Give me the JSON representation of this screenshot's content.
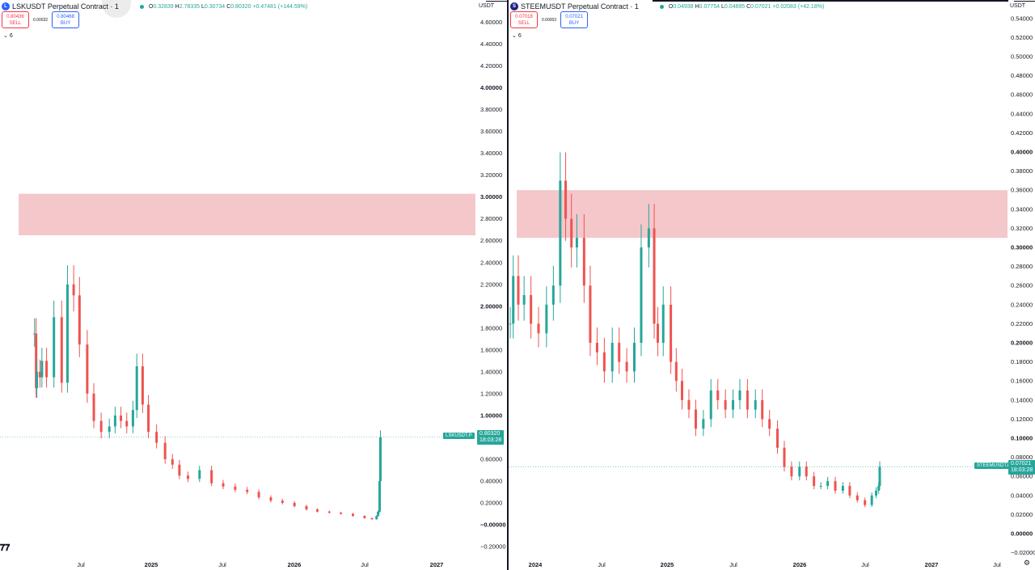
{
  "chart_data": [
    {
      "type": "candlestick",
      "symbol_title": "LSKUSDT Perpetual Contract · 1",
      "logo_letter": "L",
      "ohlc": {
        "o_label": "O",
        "o": "0.32839",
        "h_label": "H",
        "h": "2.78335",
        "l_label": "L",
        "l": "0.30734",
        "c_label": "C",
        "c": "0.80320",
        "change": "+0.47481 (+144.59%)"
      },
      "sell": {
        "price": "0.80436",
        "label": "SELL"
      },
      "buy": {
        "price": "0.80468",
        "label": "BUY"
      },
      "spread": "0.00032",
      "indicators_label": "6",
      "currency": "USDT",
      "ylim": [
        -0.2,
        4.7
      ],
      "y_ticks": [
        "4.60000",
        "4.40000",
        "4.20000",
        "4.00000",
        "3.80000",
        "3.60000",
        "3.40000",
        "3.20000",
        "3.00000",
        "2.80000",
        "2.60000",
        "2.40000",
        "2.20000",
        "2.00000",
        "1.80000",
        "1.60000",
        "1.40000",
        "1.20000",
        "1.00000",
        "0.80000",
        "0.60000",
        "0.40000",
        "0.20000",
        "−0.00000",
        "−0.20000"
      ],
      "x_ticks": [
        "Jul",
        "2025",
        "Jul",
        "2026",
        "Jul",
        "2027"
      ],
      "resistance_zone": [
        2.65,
        3.03
      ],
      "last_price": "0.80320",
      "last_price_value": 0.8032,
      "countdown": "18:03:28",
      "symbol_tag": "LSKUSDT.P",
      "colors": {
        "up": "#26a69a",
        "down": "#ef5350",
        "zone": "#f4c7cb"
      },
      "x": [
        "2024-03-01",
        "2024-03-05",
        "2024-03-07",
        "2024-03-15",
        "2024-03-20",
        "2024-04-01",
        "2024-04-20",
        "2024-05-10",
        "2024-05-25",
        "2024-06-10",
        "2024-06-25",
        "2024-07-15",
        "2024-08-01",
        "2024-08-20",
        "2024-09-10",
        "2024-09-25",
        "2024-10-10",
        "2024-10-25",
        "2024-11-10",
        "2024-11-20",
        "2024-12-05",
        "2024-12-20",
        "2025-01-10",
        "2025-02-01",
        "2025-02-20",
        "2025-03-10",
        "2025-04-01",
        "2025-05-01",
        "2025-06-01",
        "2025-07-01",
        "2025-08-01",
        "2025-09-01",
        "2025-10-01",
        "2025-11-01",
        "2025-12-01",
        "2026-01-01",
        "2026-02-01",
        "2026-03-01",
        "2026-04-01",
        "2026-05-01",
        "2026-06-01",
        "2026-07-01",
        "2026-07-20",
        "2026-08-01",
        "2026-08-05",
        "2026-08-09",
        "2026-08-11"
      ],
      "values": [
        1.75,
        1.25,
        1.4,
        1.35,
        1.5,
        1.35,
        1.9,
        1.3,
        2.2,
        2.1,
        1.65,
        1.2,
        0.95,
        0.85,
        0.9,
        1.0,
        0.95,
        0.9,
        1.05,
        1.45,
        1.1,
        0.85,
        0.75,
        0.6,
        0.55,
        0.45,
        0.42,
        0.5,
        0.38,
        0.35,
        0.32,
        0.3,
        0.25,
        0.22,
        0.2,
        0.17,
        0.14,
        0.12,
        0.11,
        0.1,
        0.08,
        0.06,
        0.05,
        0.08,
        0.12,
        0.4,
        0.8
      ]
    },
    {
      "type": "candlestick",
      "symbol_title": "STEEMUSDT Perpetual Contract · 1",
      "logo_letter": "S",
      "ohlc": {
        "o_label": "O",
        "o": "0.04938",
        "h_label": "H",
        "h": "0.07754",
        "l_label": "L",
        "l": "0.04895",
        "c_label": "C",
        "c": "0.07021",
        "change": "+0.02083 (+42.18%)"
      },
      "sell": {
        "price": "0.07018",
        "label": "SELL"
      },
      "buy": {
        "price": "0.07021",
        "label": "BUY"
      },
      "spread": "0.00003",
      "indicators_label": "6",
      "currency": "USDT",
      "ylim": [
        -0.02,
        0.55
      ],
      "y_ticks": [
        "0.54000",
        "0.52000",
        "0.50000",
        "0.48000",
        "0.46000",
        "0.44000",
        "0.42000",
        "0.40000",
        "0.38000",
        "0.36000",
        "0.34000",
        "0.32000",
        "0.30000",
        "0.28000",
        "0.26000",
        "0.24000",
        "0.22000",
        "0.20000",
        "0.18000",
        "0.16000",
        "0.14000",
        "0.12000",
        "0.10000",
        "0.08000",
        "0.06000",
        "0.04000",
        "0.02000",
        "0.00000",
        "−0.02000"
      ],
      "x_ticks": [
        "2024",
        "Jul",
        "2025",
        "Jul",
        "2026",
        "Jul",
        "2027",
        "Jul"
      ],
      "resistance_zone": [
        0.31,
        0.36
      ],
      "last_price": "0.07021",
      "last_price_value": 0.0702,
      "countdown": "18:03:28",
      "symbol_tag": "STEEMUSDT.P",
      "colors": {
        "up": "#26a69a",
        "down": "#ef5350",
        "zone": "#f4c7cb"
      },
      "x": [
        "2023-10-15",
        "2023-11-01",
        "2023-11-15",
        "2023-12-01",
        "2023-12-20",
        "2024-01-10",
        "2024-02-01",
        "2024-02-20",
        "2024-03-10",
        "2024-03-25",
        "2024-04-10",
        "2024-04-25",
        "2024-05-15",
        "2024-06-01",
        "2024-06-20",
        "2024-07-10",
        "2024-08-01",
        "2024-08-20",
        "2024-09-10",
        "2024-10-01",
        "2024-10-20",
        "2024-11-10",
        "2024-11-25",
        "2024-12-05",
        "2024-12-20",
        "2025-01-10",
        "2025-01-25",
        "2025-02-10",
        "2025-03-01",
        "2025-03-20",
        "2025-04-10",
        "2025-05-01",
        "2025-05-20",
        "2025-06-10",
        "2025-07-01",
        "2025-07-20",
        "2025-08-10",
        "2025-09-01",
        "2025-09-20",
        "2025-10-10",
        "2025-11-01",
        "2025-11-20",
        "2025-12-10",
        "2026-01-01",
        "2026-01-20",
        "2026-02-10",
        "2026-03-01",
        "2026-03-20",
        "2026-04-10",
        "2026-05-01",
        "2026-05-20",
        "2026-06-10",
        "2026-07-01",
        "2026-07-20",
        "2026-08-01",
        "2026-08-08",
        "2026-08-11"
      ],
      "values": [
        0.22,
        0.27,
        0.24,
        0.25,
        0.22,
        0.21,
        0.24,
        0.26,
        0.37,
        0.33,
        0.3,
        0.31,
        0.26,
        0.2,
        0.19,
        0.17,
        0.2,
        0.18,
        0.17,
        0.2,
        0.3,
        0.32,
        0.22,
        0.2,
        0.24,
        0.18,
        0.16,
        0.14,
        0.13,
        0.11,
        0.12,
        0.15,
        0.14,
        0.13,
        0.14,
        0.15,
        0.13,
        0.14,
        0.12,
        0.11,
        0.09,
        0.07,
        0.06,
        0.07,
        0.06,
        0.05,
        0.05,
        0.055,
        0.045,
        0.05,
        0.04,
        0.035,
        0.03,
        0.04,
        0.045,
        0.05,
        0.07
      ]
    }
  ]
}
